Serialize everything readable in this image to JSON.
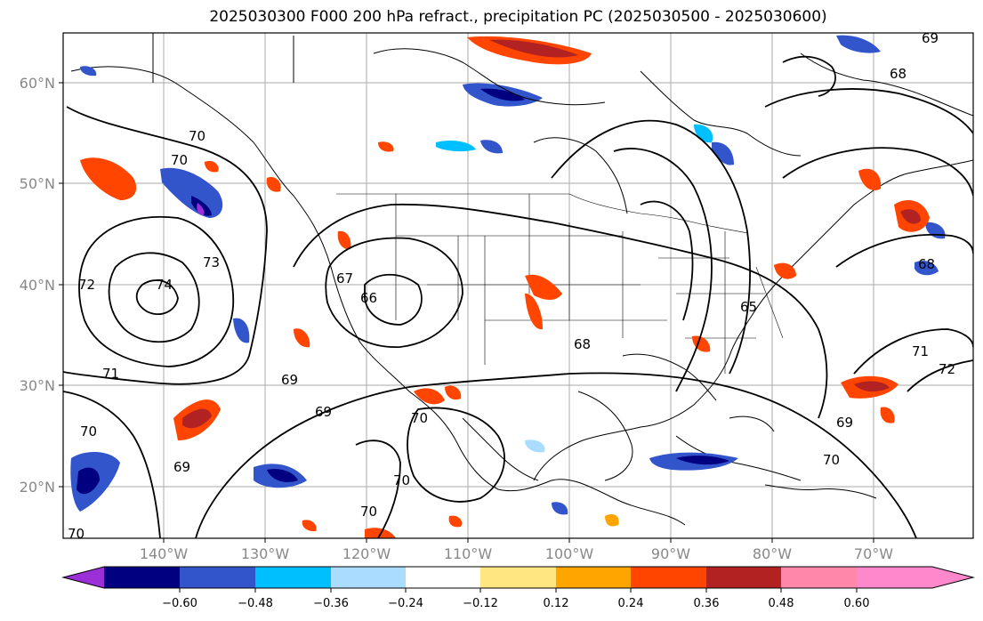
{
  "title": "2025030300 F000 200 hPa refract., precipitation PC (2025030500 - 2025030600)",
  "map": {
    "lat_labels": [
      "60°N",
      "50°N",
      "40°N",
      "30°N",
      "20°N"
    ],
    "lon_labels": [
      "140°W",
      "130°W",
      "120°W",
      "110°W",
      "100°W",
      "90°W",
      "80°W",
      "70°W"
    ],
    "contour_labels": [
      "69",
      "68",
      "70",
      "70",
      "72",
      "74",
      "73",
      "67",
      "66",
      "71",
      "69",
      "69",
      "70",
      "69",
      "70",
      "70",
      "65",
      "68",
      "68",
      "71",
      "72",
      "69",
      "70",
      "70",
      "70"
    ],
    "land_features": "North America, Central America, Caribbean"
  },
  "colorbar": {
    "ticks": [
      "−0.60",
      "−0.48",
      "−0.36",
      "−0.24",
      "−0.12",
      "0.12",
      "0.24",
      "0.36",
      "0.48",
      "0.60"
    ],
    "colors": [
      "#9b30d9",
      "#000080",
      "#3355cc",
      "#00bfff",
      "#aadcff",
      "#ffffff",
      "#ffe680",
      "#ffa500",
      "#ff4500",
      "#b22222",
      "#ff88aa",
      "#ff88cc"
    ]
  }
}
